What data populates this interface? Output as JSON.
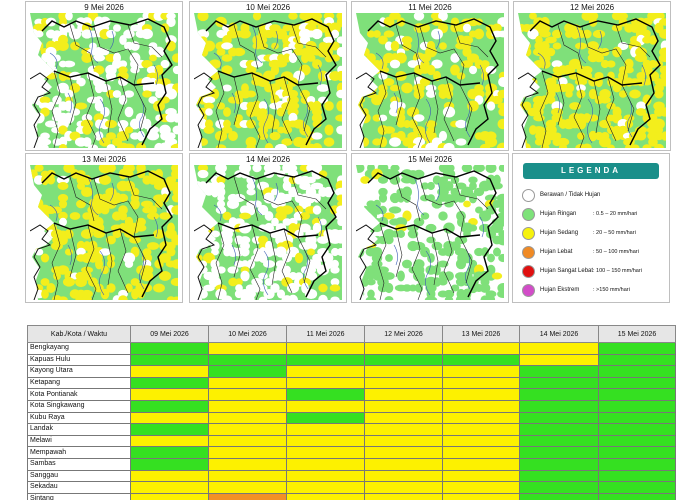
{
  "maps": [
    {
      "date": "9 Mei 2026",
      "dist": {
        "none": 0.26,
        "light": 0.63,
        "moderate": 0.11
      }
    },
    {
      "date": "10 Mei 2026",
      "dist": {
        "none": 0.08,
        "light": 0.6,
        "moderate": 0.32
      }
    },
    {
      "date": "11 Mei 2026",
      "dist": {
        "none": 0.08,
        "light": 0.68,
        "moderate": 0.24
      }
    },
    {
      "date": "12 Mei 2026",
      "dist": {
        "none": 0.03,
        "light": 0.62,
        "moderate": 0.35
      }
    },
    {
      "date": "13 Mei 2026",
      "dist": {
        "none": 0.02,
        "light": 0.66,
        "moderate": 0.32
      }
    },
    {
      "date": "14 Mei 2026",
      "dist": {
        "none": 0.36,
        "light": 0.58,
        "moderate": 0.06
      }
    },
    {
      "date": "15 Mei 2026",
      "dist": {
        "none": 0.62,
        "light": 0.36,
        "moderate": 0.02
      }
    }
  ],
  "legend": {
    "title": "LEGENDA",
    "items": [
      {
        "name": "Berawan / Tidak Hujan",
        "range": "",
        "color": "#ffffff"
      },
      {
        "name": "Hujan Ringan",
        "range": ": 0.5 – 20 mm/hari",
        "color": "#7ee27a"
      },
      {
        "name": "Hujan Sedang",
        "range": ": 20 – 50 mm/hari",
        "color": "#f6f20e"
      },
      {
        "name": "Hujan Lebat",
        "range": ": 50 – 100 mm/hari",
        "color": "#f08a24"
      },
      {
        "name": "Hujan Sangat Lebat",
        "range": ": 100 – 150 mm/hari",
        "color": "#e01010"
      },
      {
        "name": "Hujan Ekstrem",
        "range": ": >150 mm/hari",
        "color": "#d24cc8"
      }
    ]
  },
  "colors": {
    "none": "#ffffff",
    "light": "#35e021",
    "moderate": "#fdf100",
    "heavy": "#f29026",
    "map_light": "#7fe07a",
    "map_moderate": "#f3ee1c",
    "map_none": "#ffffff",
    "teal": "#1a8f8a"
  },
  "table": {
    "header": "Kab./Kota / Waktu",
    "dates": [
      "09 Mei 2026",
      "10 Mei 2026",
      "11 Mei 2026",
      "12 Mei 2026",
      "13 Mei 2026",
      "14 Mei 2026",
      "15 Mei 2026"
    ],
    "rows": [
      {
        "name": "Bengkayang",
        "cells": [
          "light",
          "moderate",
          "moderate",
          "moderate",
          "moderate",
          "moderate",
          "light"
        ]
      },
      {
        "name": "Kapuas Hulu",
        "cells": [
          "light",
          "light",
          "light",
          "light",
          "light",
          "moderate",
          "light"
        ]
      },
      {
        "name": "Kayong Utara",
        "cells": [
          "moderate",
          "light",
          "moderate",
          "moderate",
          "moderate",
          "light",
          "light"
        ]
      },
      {
        "name": "Ketapang",
        "cells": [
          "light",
          "moderate",
          "moderate",
          "moderate",
          "moderate",
          "light",
          "light"
        ]
      },
      {
        "name": "Kota Pontianak",
        "cells": [
          "moderate",
          "moderate",
          "light",
          "moderate",
          "moderate",
          "light",
          "light"
        ]
      },
      {
        "name": "Kota Singkawang",
        "cells": [
          "light",
          "moderate",
          "moderate",
          "moderate",
          "moderate",
          "light",
          "light"
        ]
      },
      {
        "name": "Kubu Raya",
        "cells": [
          "moderate",
          "moderate",
          "light",
          "moderate",
          "moderate",
          "light",
          "light"
        ]
      },
      {
        "name": "Landak",
        "cells": [
          "light",
          "moderate",
          "moderate",
          "moderate",
          "moderate",
          "light",
          "light"
        ]
      },
      {
        "name": "Melawi",
        "cells": [
          "moderate",
          "moderate",
          "moderate",
          "moderate",
          "moderate",
          "light",
          "light"
        ]
      },
      {
        "name": "Mempawah",
        "cells": [
          "light",
          "moderate",
          "moderate",
          "moderate",
          "moderate",
          "light",
          "light"
        ]
      },
      {
        "name": "Sambas",
        "cells": [
          "light",
          "moderate",
          "moderate",
          "moderate",
          "moderate",
          "light",
          "light"
        ]
      },
      {
        "name": "Sanggau",
        "cells": [
          "moderate",
          "moderate",
          "moderate",
          "moderate",
          "moderate",
          "light",
          "light"
        ]
      },
      {
        "name": "Sekadau",
        "cells": [
          "moderate",
          "moderate",
          "moderate",
          "moderate",
          "moderate",
          "light",
          "light"
        ]
      },
      {
        "name": "Sintang",
        "cells": [
          "moderate",
          "heavy",
          "moderate",
          "moderate",
          "moderate",
          "light",
          "light"
        ]
      }
    ]
  }
}
